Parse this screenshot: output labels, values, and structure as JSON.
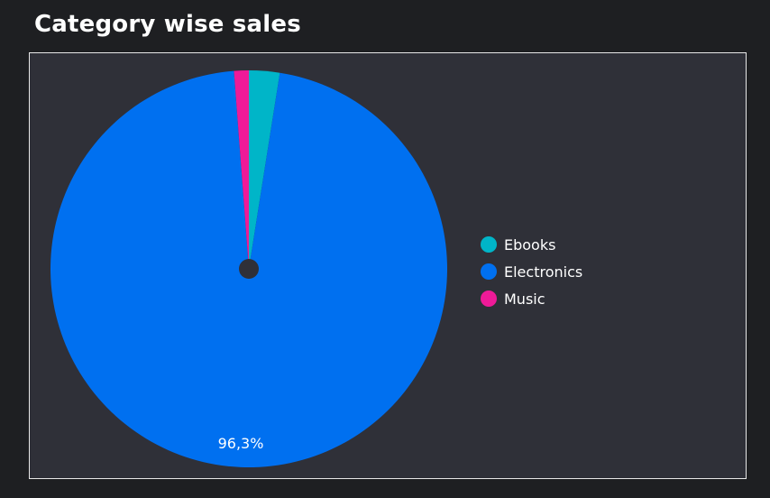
{
  "chart_data": {
    "type": "pie",
    "title": "Category wise sales",
    "slices": [
      {
        "label": "Ebooks",
        "value": 2.5,
        "color": "#00b5c8"
      },
      {
        "label": "Electronics",
        "value": 96.3,
        "color": "#0070f0"
      },
      {
        "label": "Music",
        "value": 1.2,
        "color": "#ef1a98"
      }
    ],
    "data_labels": [
      {
        "slice": "Electronics",
        "text": "96,3%"
      }
    ],
    "legend_position": "right",
    "start_angle_deg": -90,
    "direction": "clockwise"
  },
  "colors": {
    "page_background": "#1e1f22",
    "panel_background": "#2f3038",
    "panel_border": "#e8e8e8",
    "center_dot": "#2f3038"
  }
}
